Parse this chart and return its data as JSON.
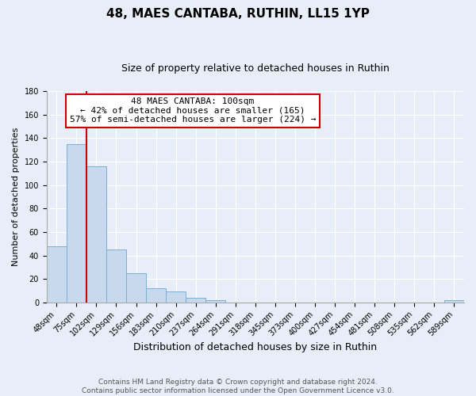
{
  "title": "48, MAES CANTABA, RUTHIN, LL15 1YP",
  "subtitle": "Size of property relative to detached houses in Ruthin",
  "xlabel": "Distribution of detached houses by size in Ruthin",
  "ylabel": "Number of detached properties",
  "bin_labels": [
    "48sqm",
    "75sqm",
    "102sqm",
    "129sqm",
    "156sqm",
    "183sqm",
    "210sqm",
    "237sqm",
    "264sqm",
    "291sqm",
    "318sqm",
    "345sqm",
    "373sqm",
    "400sqm",
    "427sqm",
    "454sqm",
    "481sqm",
    "508sqm",
    "535sqm",
    "562sqm",
    "589sqm"
  ],
  "bar_heights": [
    48,
    135,
    116,
    45,
    25,
    12,
    9,
    4,
    2,
    0,
    0,
    0,
    0,
    0,
    0,
    0,
    0,
    0,
    0,
    0,
    2
  ],
  "bar_color": "#c9d9ed",
  "bar_edgecolor": "#7bafd4",
  "vline_x": 2,
  "vline_color": "#cc0000",
  "ylim": [
    0,
    180
  ],
  "yticks": [
    0,
    20,
    40,
    60,
    80,
    100,
    120,
    140,
    160,
    180
  ],
  "annotation_title": "48 MAES CANTABA: 100sqm",
  "annotation_line1": "← 42% of detached houses are smaller (165)",
  "annotation_line2": "57% of semi-detached houses are larger (224) →",
  "annotation_box_facecolor": "#ffffff",
  "annotation_box_edgecolor": "#cc0000",
  "footer_line1": "Contains HM Land Registry data © Crown copyright and database right 2024.",
  "footer_line2": "Contains public sector information licensed under the Open Government Licence v3.0.",
  "background_color": "#e8eef7",
  "plot_background": "#e8eef7",
  "title_fontsize": 11,
  "subtitle_fontsize": 9,
  "ylabel_fontsize": 8,
  "xlabel_fontsize": 9,
  "tick_fontsize": 7,
  "footer_fontsize": 6.5,
  "annot_fontsize": 8
}
